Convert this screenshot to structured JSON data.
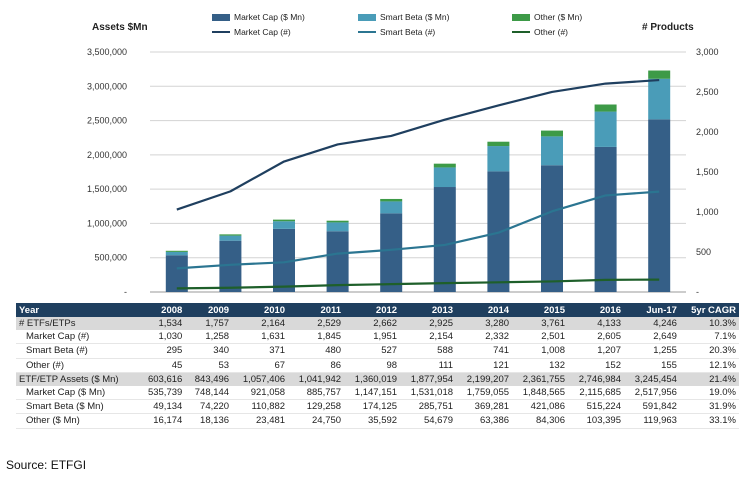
{
  "colors": {
    "market_cap_bar": "#355f87",
    "smart_beta_bar": "#4a9cb8",
    "other_bar": "#3d9a47",
    "market_cap_line": "#1f3f5f",
    "smart_beta_line": "#2b7591",
    "other_line": "#1e5f2a",
    "header_bg": "#1f3f5f"
  },
  "chart_data": {
    "type": "bar",
    "stacked": true,
    "title": "",
    "ylabel": "Assets $Mn",
    "y2label": "# Products",
    "categories": [
      "2008",
      "2009",
      "2010",
      "2011",
      "2012",
      "2013",
      "2014",
      "2015",
      "2016",
      "Jun-17"
    ],
    "ylim": [
      0,
      3500000
    ],
    "y_ticks": [
      "-",
      "500,000",
      "1,000,000",
      "1,500,000",
      "2,000,000",
      "2,500,000",
      "3,000,000",
      "3,500,000"
    ],
    "y2lim": [
      0,
      3000
    ],
    "y2_ticks": [
      "-",
      "500",
      "1,000",
      "1,500",
      "2,000",
      "2,500",
      "3,000"
    ],
    "grid": true,
    "legend_position": "top",
    "series": [
      {
        "name": "Market Cap ($ Mn)",
        "kind": "bar",
        "axis": "left",
        "values": [
          535739,
          748144,
          921058,
          885757,
          1147151,
          1531018,
          1759055,
          1848565,
          2115685,
          2517956
        ]
      },
      {
        "name": "Smart Beta ($ Mn)",
        "kind": "bar",
        "axis": "left",
        "values": [
          49134,
          74220,
          110882,
          129258,
          174125,
          285751,
          369281,
          421086,
          515224,
          591842
        ]
      },
      {
        "name": "Other ($ Mn)",
        "kind": "bar",
        "axis": "left",
        "values": [
          16174,
          18136,
          23481,
          24750,
          35592,
          54679,
          63386,
          84306,
          103395,
          119963
        ]
      },
      {
        "name": "Market Cap (#)",
        "kind": "line",
        "axis": "right",
        "values": [
          1030,
          1258,
          1631,
          1845,
          1951,
          2154,
          2332,
          2501,
          2605,
          2649
        ]
      },
      {
        "name": "Smart Beta (#)",
        "kind": "line",
        "axis": "right",
        "values": [
          295,
          340,
          371,
          480,
          527,
          588,
          741,
          1008,
          1207,
          1255
        ]
      },
      {
        "name": "Other (#)",
        "kind": "line",
        "axis": "right",
        "values": [
          45,
          53,
          67,
          86,
          98,
          111,
          121,
          132,
          152,
          155
        ]
      }
    ]
  },
  "table": {
    "headers": [
      "Year",
      "2008",
      "2009",
      "2010",
      "2011",
      "2012",
      "2013",
      "2014",
      "2015",
      "2016",
      "Jun-17",
      "5yr CAGR"
    ],
    "rows": [
      {
        "type": "main",
        "cells": [
          "# ETFs/ETPs",
          "1,534",
          "1,757",
          "2,164",
          "2,529",
          "2,662",
          "2,925",
          "3,280",
          "3,761",
          "4,133",
          "4,246",
          "10.3%"
        ]
      },
      {
        "type": "sub",
        "cells": [
          "Market Cap (#)",
          "1,030",
          "1,258",
          "1,631",
          "1,845",
          "1,951",
          "2,154",
          "2,332",
          "2,501",
          "2,605",
          "2,649",
          "7.1%"
        ]
      },
      {
        "type": "sub",
        "cells": [
          "Smart Beta (#)",
          "295",
          "340",
          "371",
          "480",
          "527",
          "588",
          "741",
          "1,008",
          "1,207",
          "1,255",
          "20.3%"
        ]
      },
      {
        "type": "sub",
        "cells": [
          "Other (#)",
          "45",
          "53",
          "67",
          "86",
          "98",
          "111",
          "121",
          "132",
          "152",
          "155",
          "12.1%"
        ]
      },
      {
        "type": "main",
        "cells": [
          "ETF/ETP Assets ($ Mn)",
          "603,616",
          "843,496",
          "1,057,406",
          "1,041,942",
          "1,360,019",
          "1,877,954",
          "2,199,207",
          "2,361,755",
          "2,746,984",
          "3,245,454",
          "21.4%"
        ]
      },
      {
        "type": "sub",
        "cells": [
          "Market Cap ($ Mn)",
          "535,739",
          "748,144",
          "921,058",
          "885,757",
          "1,147,151",
          "1,531,018",
          "1,759,055",
          "1,848,565",
          "2,115,685",
          "2,517,956",
          "19.0%"
        ]
      },
      {
        "type": "sub",
        "cells": [
          "Smart Beta ($ Mn)",
          "49,134",
          "74,220",
          "110,882",
          "129,258",
          "174,125",
          "285,751",
          "369,281",
          "421,086",
          "515,224",
          "591,842",
          "31.9%"
        ]
      },
      {
        "type": "sub",
        "cells": [
          "Other ($ Mn)",
          "16,174",
          "18,136",
          "23,481",
          "24,750",
          "35,592",
          "54,679",
          "63,386",
          "84,306",
          "103,395",
          "119,963",
          "33.1%"
        ]
      }
    ]
  },
  "source": "Source: ETFGI"
}
